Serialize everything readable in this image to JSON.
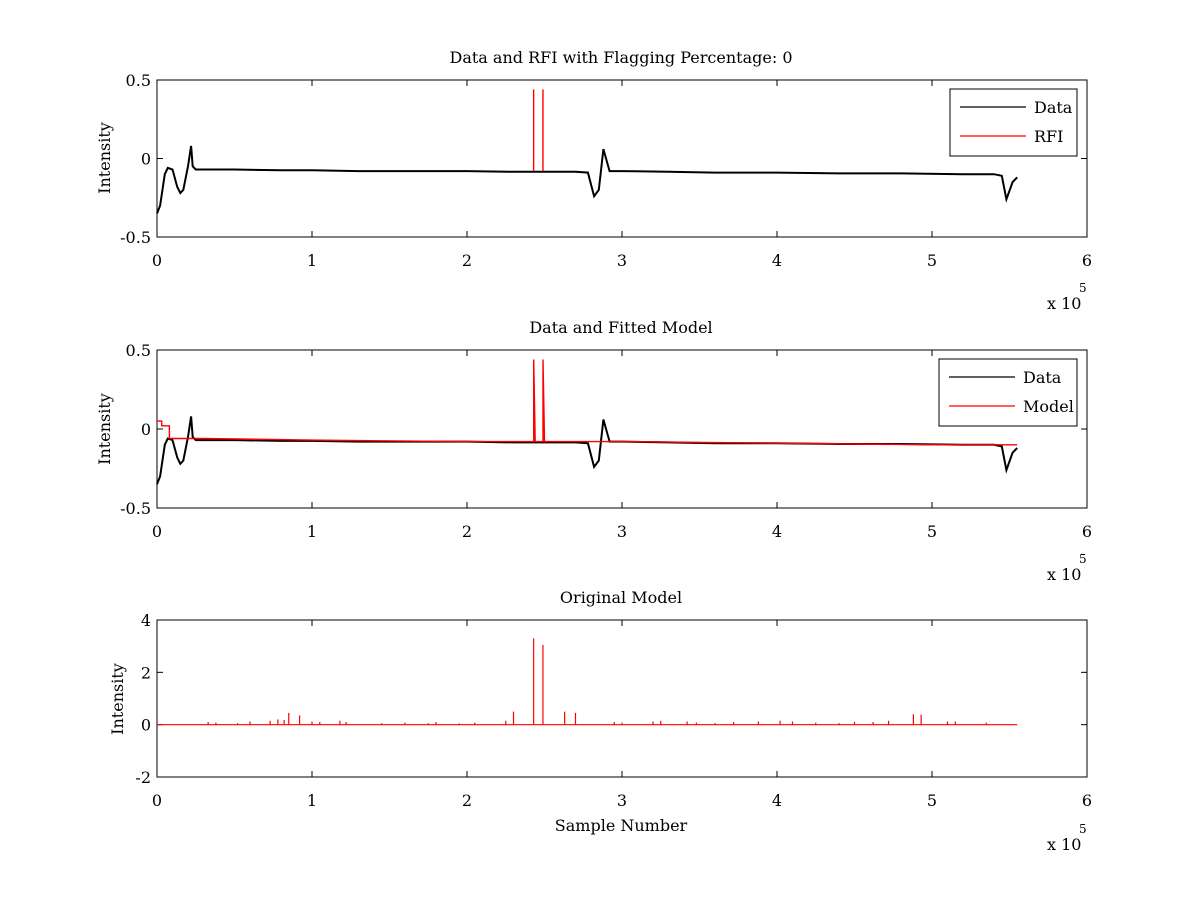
{
  "chart_data": [
    {
      "type": "line",
      "title": "Data and RFI with Flagging Percentage: 0",
      "xlabel": "",
      "ylabel": "Intensity",
      "xlim": [
        0,
        6
      ],
      "ylim": [
        -0.5,
        0.5
      ],
      "x_ticks": [
        "0",
        "1",
        "2",
        "3",
        "4",
        "5",
        "6"
      ],
      "y_ticks": [
        "-0.5",
        "0",
        "0.5"
      ],
      "x_multiplier": {
        "base": "x 10",
        "exponent": "5"
      },
      "legend": {
        "position": "top-right",
        "entries": [
          {
            "label": "Data",
            "color": "#000000"
          },
          {
            "label": "RFI",
            "color": "#ff0000"
          }
        ]
      },
      "series": [
        {
          "name": "Data",
          "color": "#000000",
          "x": [
            0,
            0.02,
            0.05,
            0.07,
            0.1,
            0.13,
            0.15,
            0.17,
            0.2,
            0.22,
            0.23,
            0.25,
            0.3,
            0.5,
            0.8,
            1.0,
            1.3,
            1.6,
            2.0,
            2.3,
            2.6,
            2.7,
            2.78,
            2.82,
            2.85,
            2.88,
            2.92,
            3.0,
            3.3,
            3.6,
            4.0,
            4.4,
            4.8,
            5.2,
            5.4,
            5.45,
            5.48,
            5.52,
            5.55
          ],
          "y": [
            -0.35,
            -0.3,
            -0.1,
            -0.06,
            -0.07,
            -0.18,
            -0.22,
            -0.2,
            -0.05,
            0.08,
            -0.05,
            -0.07,
            -0.07,
            -0.07,
            -0.075,
            -0.075,
            -0.08,
            -0.08,
            -0.08,
            -0.085,
            -0.085,
            -0.085,
            -0.09,
            -0.24,
            -0.2,
            0.06,
            -0.08,
            -0.08,
            -0.085,
            -0.09,
            -0.09,
            -0.095,
            -0.095,
            -0.1,
            -0.1,
            -0.11,
            -0.26,
            -0.15,
            -0.12
          ]
        },
        {
          "name": "RFI",
          "color": "#ff0000",
          "x": [
            2.43,
            2.49
          ],
          "y": [
            0.44,
            0.44
          ]
        }
      ]
    },
    {
      "type": "line",
      "title": "Data and Fitted Model",
      "xlabel": "",
      "ylabel": "Intensity",
      "xlim": [
        0,
        6
      ],
      "ylim": [
        -0.5,
        0.5
      ],
      "x_ticks": [
        "0",
        "1",
        "2",
        "3",
        "4",
        "5",
        "6"
      ],
      "y_ticks": [
        "-0.5",
        "0",
        "0.5"
      ],
      "x_multiplier": {
        "base": "x 10",
        "exponent": "5"
      },
      "legend": {
        "position": "top-right",
        "entries": [
          {
            "label": "Data",
            "color": "#000000"
          },
          {
            "label": "Model",
            "color": "#ff0000"
          }
        ]
      },
      "series": [
        {
          "name": "Data",
          "color": "#000000",
          "x": [
            0,
            0.02,
            0.05,
            0.07,
            0.1,
            0.13,
            0.15,
            0.17,
            0.2,
            0.22,
            0.23,
            0.25,
            0.3,
            0.5,
            0.8,
            1.0,
            1.3,
            1.6,
            2.0,
            2.3,
            2.6,
            2.7,
            2.78,
            2.82,
            2.85,
            2.88,
            2.92,
            3.0,
            3.3,
            3.6,
            4.0,
            4.4,
            4.8,
            5.2,
            5.4,
            5.45,
            5.48,
            5.52,
            5.55
          ],
          "y": [
            -0.35,
            -0.3,
            -0.1,
            -0.06,
            -0.07,
            -0.18,
            -0.22,
            -0.2,
            -0.05,
            0.08,
            -0.05,
            -0.07,
            -0.07,
            -0.07,
            -0.075,
            -0.075,
            -0.08,
            -0.08,
            -0.08,
            -0.085,
            -0.085,
            -0.085,
            -0.09,
            -0.24,
            -0.2,
            0.06,
            -0.08,
            -0.08,
            -0.085,
            -0.09,
            -0.09,
            -0.095,
            -0.095,
            -0.1,
            -0.1,
            -0.11,
            -0.26,
            -0.15,
            -0.12
          ]
        },
        {
          "name": "Model",
          "color": "#ff0000",
          "x": [
            0,
            0.03,
            0.03,
            0.08,
            0.08,
            0.3,
            1.0,
            2.0,
            2.43,
            2.43,
            2.44,
            2.49,
            2.49,
            2.5,
            3.0,
            4.0,
            5.0,
            5.55
          ],
          "y": [
            0.05,
            0.05,
            0.02,
            0.02,
            -0.06,
            -0.06,
            -0.07,
            -0.08,
            -0.08,
            0.44,
            -0.08,
            -0.08,
            0.44,
            -0.08,
            -0.08,
            -0.09,
            -0.1,
            -0.1
          ]
        }
      ]
    },
    {
      "type": "line",
      "title": "Original Model",
      "xlabel": "Sample Number",
      "ylabel": "Intensity",
      "xlim": [
        0,
        6
      ],
      "ylim": [
        -2,
        4
      ],
      "x_ticks": [
        "0",
        "1",
        "2",
        "3",
        "4",
        "5",
        "6"
      ],
      "y_ticks": [
        "-2",
        "0",
        "2",
        "4"
      ],
      "x_multiplier": {
        "base": "x 10",
        "exponent": "5"
      },
      "series": [
        {
          "name": "",
          "color": "#ff0000",
          "baseline": 0,
          "x_end": 5.55,
          "spikes": [
            [
              0.33,
              0.1
            ],
            [
              0.38,
              0.08
            ],
            [
              0.52,
              0.06
            ],
            [
              0.6,
              0.12
            ],
            [
              0.73,
              0.15
            ],
            [
              0.78,
              0.2
            ],
            [
              0.82,
              0.18
            ],
            [
              0.85,
              0.45
            ],
            [
              0.92,
              0.35
            ],
            [
              1.0,
              0.12
            ],
            [
              1.05,
              0.1
            ],
            [
              1.18,
              0.15
            ],
            [
              1.22,
              0.1
            ],
            [
              1.45,
              0.06
            ],
            [
              1.6,
              0.08
            ],
            [
              1.75,
              0.06
            ],
            [
              1.8,
              0.1
            ],
            [
              1.95,
              0.05
            ],
            [
              2.05,
              0.08
            ],
            [
              2.25,
              0.15
            ],
            [
              2.3,
              0.5
            ],
            [
              2.43,
              3.3
            ],
            [
              2.49,
              3.05
            ],
            [
              2.63,
              0.5
            ],
            [
              2.7,
              0.45
            ],
            [
              2.95,
              0.1
            ],
            [
              3.0,
              0.08
            ],
            [
              3.2,
              0.12
            ],
            [
              3.25,
              0.15
            ],
            [
              3.42,
              0.12
            ],
            [
              3.48,
              0.08
            ],
            [
              3.6,
              0.06
            ],
            [
              3.72,
              0.1
            ],
            [
              3.88,
              0.12
            ],
            [
              4.02,
              0.15
            ],
            [
              4.1,
              0.12
            ],
            [
              4.25,
              0.08
            ],
            [
              4.4,
              0.06
            ],
            [
              4.5,
              0.1
            ],
            [
              4.62,
              0.1
            ],
            [
              4.72,
              0.15
            ],
            [
              4.88,
              0.4
            ],
            [
              4.93,
              0.38
            ],
            [
              5.1,
              0.12
            ],
            [
              5.15,
              0.12
            ],
            [
              5.35,
              0.08
            ]
          ]
        }
      ]
    }
  ]
}
